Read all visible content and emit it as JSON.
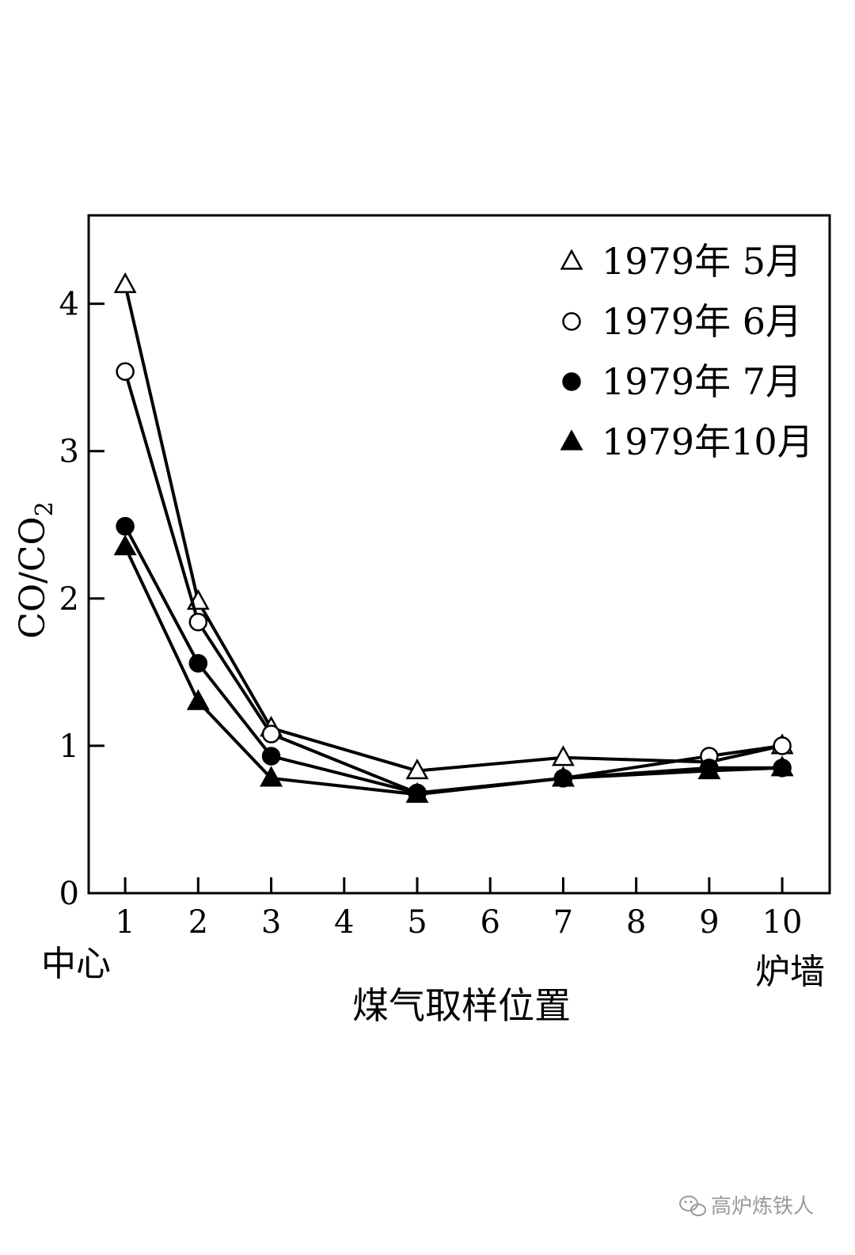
{
  "chart_data": {
    "type": "line",
    "title": "",
    "xlabel": "煤气取样位置",
    "ylabel_main": "CO/CO",
    "ylabel_sub": "2",
    "xlim": [
      0.5,
      10.65
    ],
    "ylim": [
      0,
      4.6
    ],
    "x_ticks": [
      1,
      2,
      3,
      4,
      5,
      6,
      7,
      8,
      9,
      10
    ],
    "y_ticks": [
      0,
      1,
      2,
      3,
      4
    ],
    "grid": false,
    "legend_position": "top-right",
    "x_end_labels": {
      "left": "中心",
      "right": "炉墙"
    },
    "series": [
      {
        "name": "1979年 5月",
        "marker": "triangle-open",
        "points": [
          [
            1,
            4.13
          ],
          [
            2,
            1.98
          ],
          [
            3,
            1.12
          ],
          [
            5,
            0.83
          ],
          [
            7,
            0.92
          ],
          [
            9,
            0.89
          ],
          [
            10,
            1.0
          ]
        ]
      },
      {
        "name": "1979年 6月",
        "marker": "circle-open",
        "points": [
          [
            1,
            3.54
          ],
          [
            2,
            1.84
          ],
          [
            3,
            1.08
          ],
          [
            5,
            0.68
          ],
          [
            7,
            0.78
          ],
          [
            9,
            0.93
          ],
          [
            10,
            1.0
          ]
        ]
      },
      {
        "name": "1979年 7月",
        "marker": "circle-filled",
        "points": [
          [
            1,
            2.49
          ],
          [
            2,
            1.56
          ],
          [
            3,
            0.93
          ],
          [
            5,
            0.68
          ],
          [
            7,
            0.78
          ],
          [
            9,
            0.85
          ],
          [
            10,
            0.85
          ]
        ]
      },
      {
        "name": "1979年10月",
        "marker": "triangle-filled",
        "points": [
          [
            1,
            2.35
          ],
          [
            2,
            1.3
          ],
          [
            3,
            0.78
          ],
          [
            5,
            0.67
          ],
          [
            7,
            0.78
          ],
          [
            9,
            0.83
          ],
          [
            10,
            0.85
          ]
        ]
      }
    ]
  },
  "watermark": {
    "icon": "wechat-icon",
    "text": "高炉炼铁人"
  }
}
